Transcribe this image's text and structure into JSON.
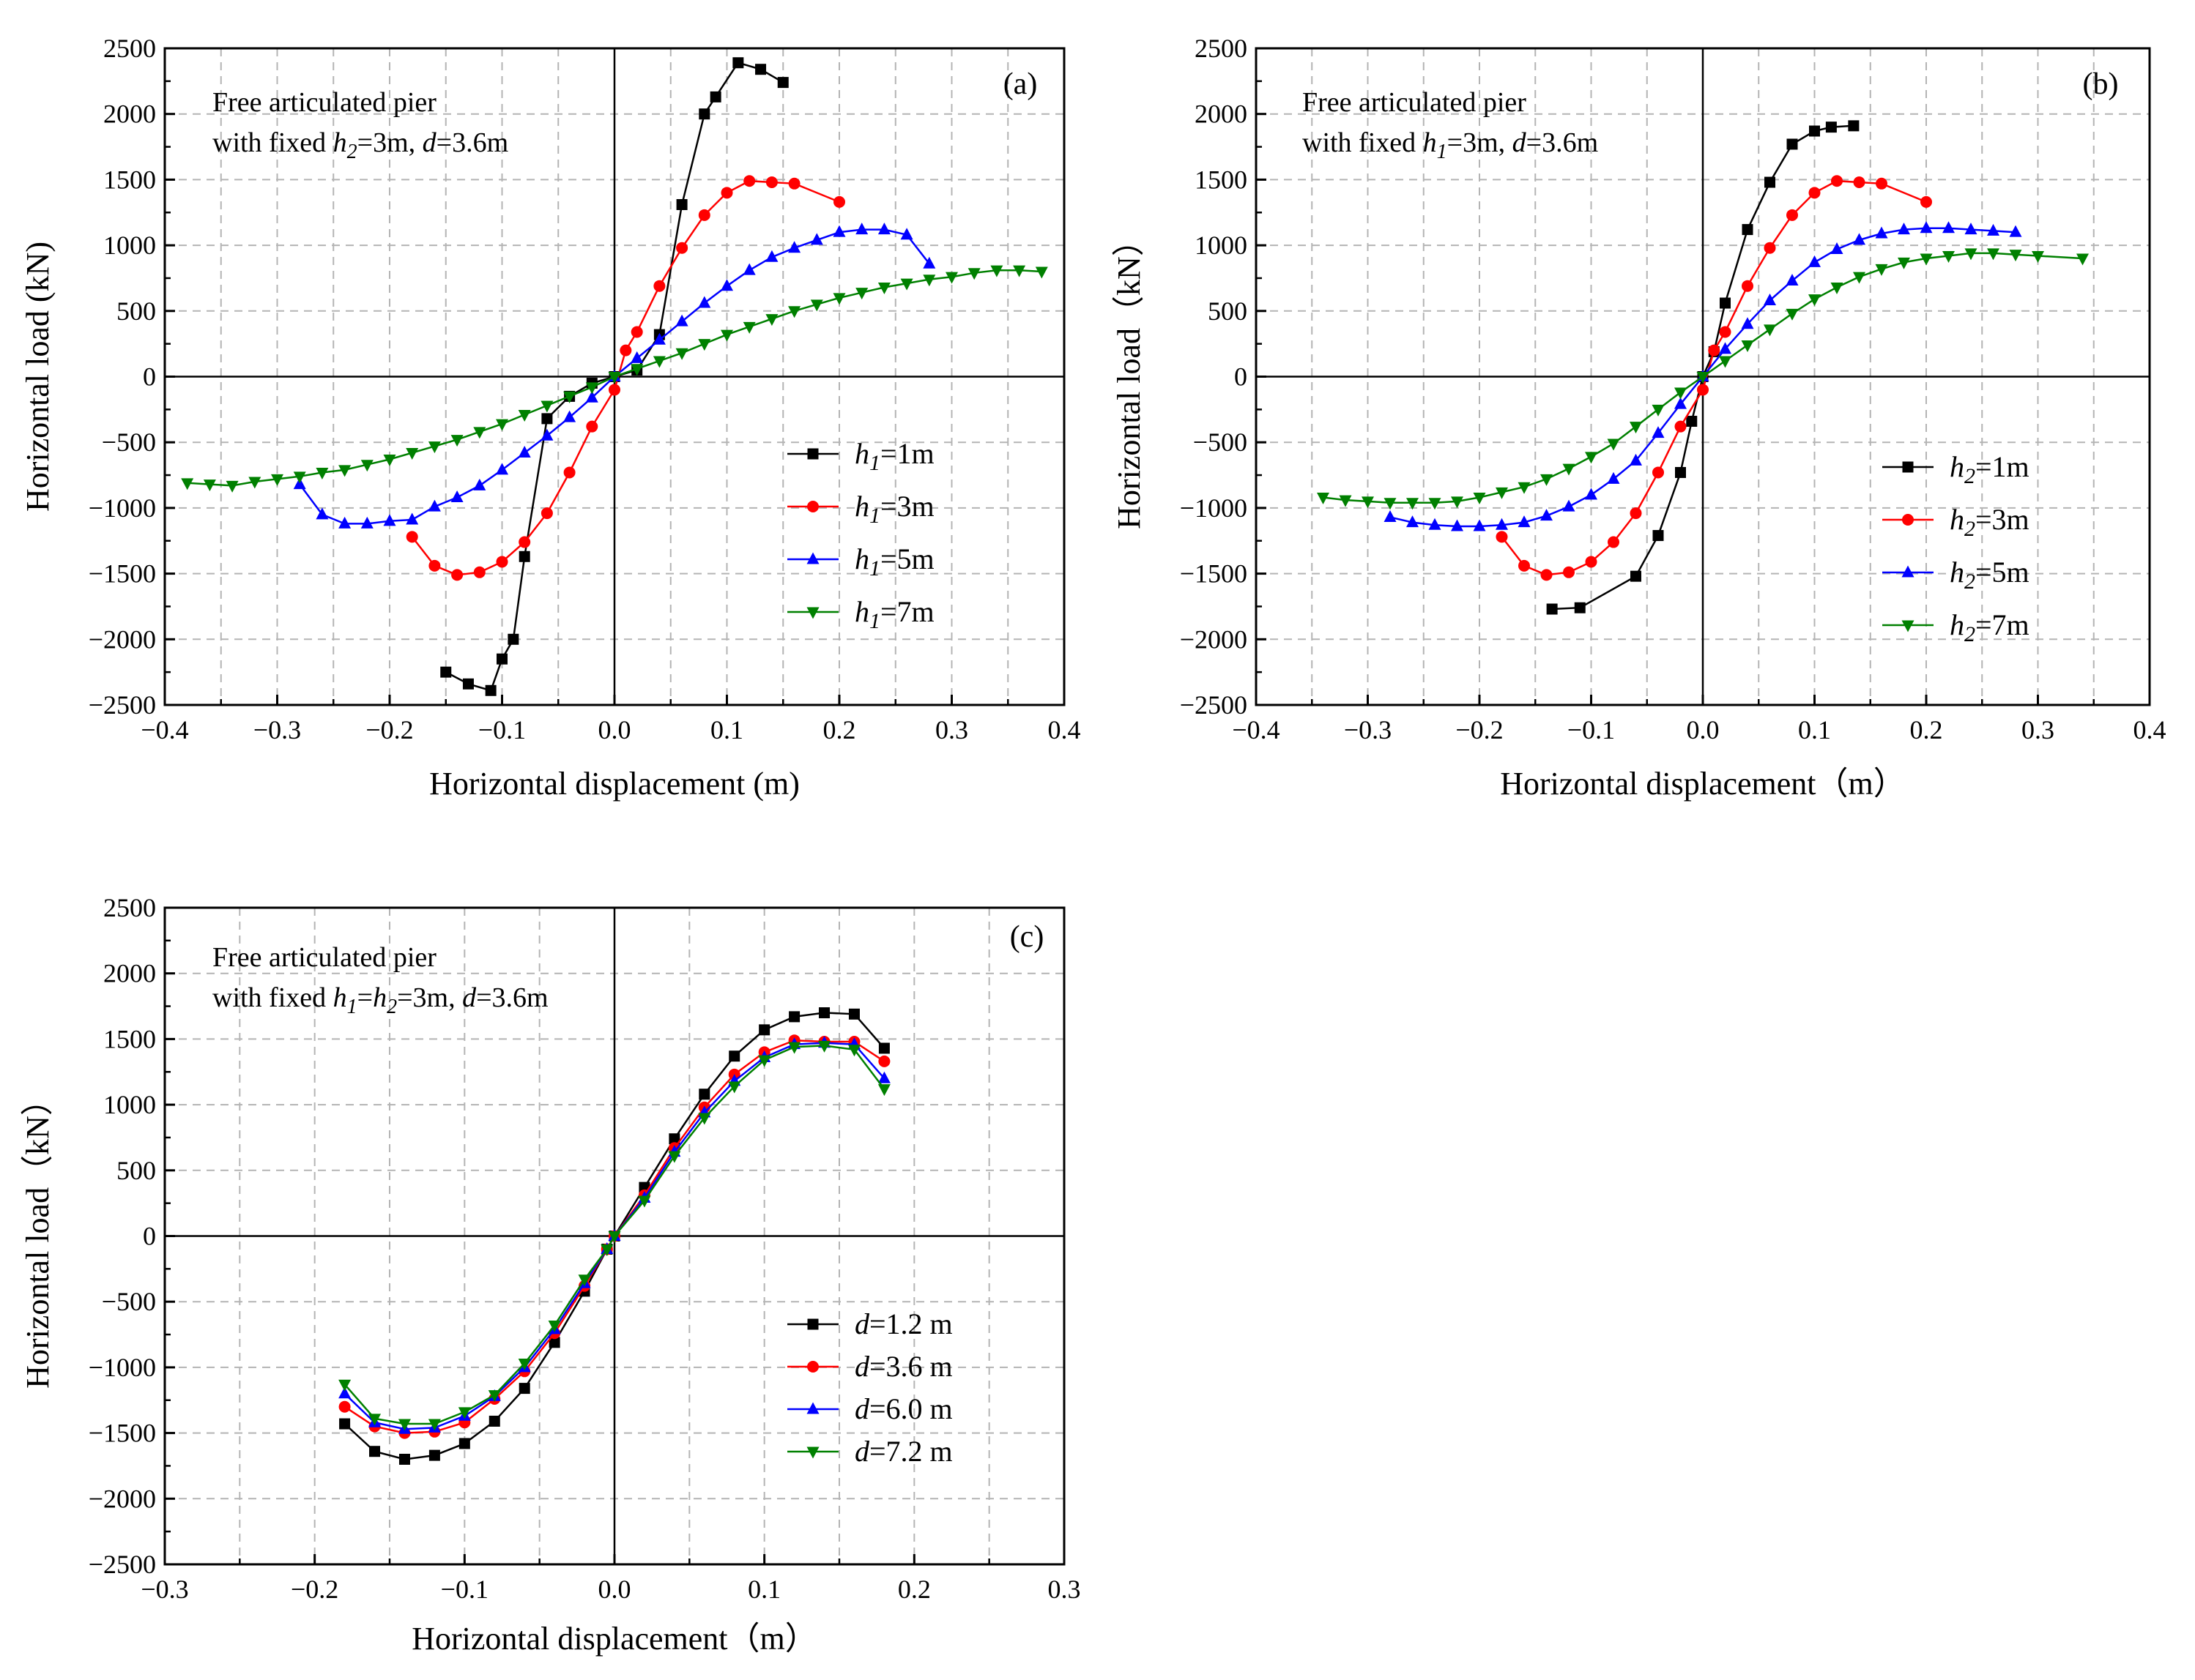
{
  "colors": {
    "black": "#000000",
    "red": "#ff0000",
    "blue": "#0000ff",
    "green": "#008000",
    "grid": "#b4b4b4"
  },
  "chart_data": [
    {
      "type": "line",
      "panel_label": "(a)",
      "annotation": {
        "line1": "Free articulated pier",
        "line2_prefix": "with fixed ",
        "var": "h",
        "sub": "2",
        "line2_mid": "=3m, ",
        "var2": "d",
        "line2_suffix": "=3.6m"
      },
      "xlabel": "Horizontal displacement (m)",
      "ylabel": "Horizontal load (kN)",
      "xlim": [
        -0.4,
        0.4
      ],
      "ylim": [
        -2500,
        2500
      ],
      "xticks": [
        -0.4,
        -0.3,
        -0.2,
        -0.1,
        0.0,
        0.1,
        0.2,
        0.3,
        0.4
      ],
      "xtick_labels": [
        "−0.4",
        "−0.3",
        "−0.2",
        "−0.1",
        "0.0",
        "0.1",
        "0.2",
        "0.3",
        "0.4"
      ],
      "yticks": [
        -2500,
        -2000,
        -1500,
        -1000,
        -500,
        0,
        500,
        1000,
        1500,
        2000,
        2500
      ],
      "ytick_labels": [
        "−2500",
        "−2000",
        "−1500",
        "−1000",
        "−500",
        "0",
        "500",
        "1000",
        "1500",
        "2000",
        "2500"
      ],
      "legend_position": "right",
      "series": [
        {
          "var": "h",
          "sub": "1",
          "value": "=1m",
          "color": "#000000",
          "marker": "square",
          "x": [
            -0.15,
            -0.13,
            -0.11,
            -0.1,
            -0.09,
            -0.08,
            -0.06,
            -0.04,
            -0.02,
            0,
            0.02,
            0.04,
            0.06,
            0.08,
            0.09,
            0.11,
            0.13,
            0.15
          ],
          "y": [
            -2250,
            -2340,
            -2390,
            -2150,
            -2000,
            -1370,
            -320,
            -150,
            -50,
            0,
            50,
            320,
            1310,
            2000,
            2130,
            2390,
            2340,
            2240
          ]
        },
        {
          "var": "h",
          "sub": "1",
          "value": "=3m",
          "color": "#ff0000",
          "marker": "circle",
          "x": [
            -0.18,
            -0.16,
            -0.14,
            -0.12,
            -0.1,
            -0.08,
            -0.06,
            -0.04,
            -0.02,
            0,
            0.01,
            0.02,
            0.04,
            0.06,
            0.08,
            0.1,
            0.12,
            0.14,
            0.16,
            0.2
          ],
          "y": [
            -1220,
            -1440,
            -1510,
            -1490,
            -1410,
            -1260,
            -1040,
            -730,
            -380,
            -100,
            200,
            340,
            690,
            980,
            1230,
            1400,
            1490,
            1480,
            1470,
            1330
          ]
        },
        {
          "var": "h",
          "sub": "1",
          "value": "=5m",
          "color": "#0000ff",
          "marker": "triangle-up",
          "x": [
            -0.28,
            -0.26,
            -0.24,
            -0.22,
            -0.2,
            -0.18,
            -0.16,
            -0.14,
            -0.12,
            -0.1,
            -0.08,
            -0.06,
            -0.04,
            -0.02,
            0,
            0.02,
            0.04,
            0.06,
            0.08,
            0.1,
            0.12,
            0.14,
            0.16,
            0.18,
            0.2,
            0.22,
            0.24,
            0.26,
            0.28
          ],
          "y": [
            -820,
            -1050,
            -1120,
            -1120,
            -1100,
            -1090,
            -990,
            -920,
            -830,
            -710,
            -580,
            -450,
            -310,
            -160,
            0,
            140,
            280,
            420,
            560,
            690,
            810,
            910,
            980,
            1040,
            1100,
            1120,
            1120,
            1080,
            860
          ]
        },
        {
          "var": "h",
          "sub": "1",
          "value": "=7m",
          "color": "#008000",
          "marker": "triangle-down",
          "x": [
            -0.38,
            -0.36,
            -0.34,
            -0.32,
            -0.3,
            -0.28,
            -0.26,
            -0.24,
            -0.22,
            -0.2,
            -0.18,
            -0.16,
            -0.14,
            -0.12,
            -0.1,
            -0.08,
            -0.06,
            -0.04,
            -0.02,
            0,
            0.02,
            0.04,
            0.06,
            0.08,
            0.1,
            0.12,
            0.14,
            0.16,
            0.18,
            0.2,
            0.22,
            0.24,
            0.26,
            0.28,
            0.3,
            0.32,
            0.34,
            0.36,
            0.38
          ],
          "y": [
            -810,
            -820,
            -830,
            -800,
            -780,
            -760,
            -730,
            -710,
            -670,
            -630,
            -580,
            -530,
            -480,
            -420,
            -360,
            -290,
            -220,
            -150,
            -80,
            0,
            60,
            120,
            180,
            250,
            320,
            380,
            440,
            500,
            550,
            600,
            640,
            680,
            710,
            740,
            760,
            790,
            810,
            810,
            800
          ]
        }
      ]
    },
    {
      "type": "line",
      "panel_label": "(b)",
      "annotation": {
        "line1": "Free articulated pier",
        "line2_prefix": "with fixed ",
        "var": "h",
        "sub": "1",
        "line2_mid": "=3m, ",
        "var2": "d",
        "line2_suffix": "=3.6m"
      },
      "xlabel": "Horizontal displacement（m）",
      "ylabel": "Horizontal load（kN）",
      "xlim": [
        -0.4,
        0.4
      ],
      "ylim": [
        -2500,
        2500
      ],
      "xticks": [
        -0.4,
        -0.3,
        -0.2,
        -0.1,
        0.0,
        0.1,
        0.2,
        0.3,
        0.4
      ],
      "xtick_labels": [
        "−0.4",
        "−0.3",
        "−0.2",
        "−0.1",
        "0.0",
        "0.1",
        "0.2",
        "0.3",
        "0.4"
      ],
      "yticks": [
        -2500,
        -2000,
        -1500,
        -1000,
        -500,
        0,
        500,
        1000,
        1500,
        2000,
        2500
      ],
      "ytick_labels": [
        "−2500",
        "−2000",
        "−1500",
        "−1000",
        "−500",
        "0",
        "500",
        "1000",
        "1500",
        "2000",
        "2500"
      ],
      "legend_position": "right",
      "series": [
        {
          "var": "h",
          "sub": "2",
          "value": "=1m",
          "color": "#000000",
          "marker": "square",
          "x": [
            -0.135,
            -0.11,
            -0.06,
            -0.04,
            -0.02,
            -0.01,
            0,
            0.01,
            0.02,
            0.04,
            0.06,
            0.08,
            0.1,
            0.115,
            0.135
          ],
          "y": [
            -1770,
            -1760,
            -1520,
            -1210,
            -730,
            -340,
            0,
            190,
            560,
            1120,
            1480,
            1770,
            1870,
            1900,
            1910
          ]
        },
        {
          "var": "h",
          "sub": "2",
          "value": "=3m",
          "color": "#ff0000",
          "marker": "circle",
          "x": [
            -0.18,
            -0.16,
            -0.14,
            -0.12,
            -0.1,
            -0.08,
            -0.06,
            -0.04,
            -0.02,
            0,
            0.01,
            0.02,
            0.04,
            0.06,
            0.08,
            0.1,
            0.12,
            0.14,
            0.16,
            0.2
          ],
          "y": [
            -1220,
            -1440,
            -1510,
            -1490,
            -1410,
            -1260,
            -1040,
            -730,
            -380,
            -100,
            200,
            340,
            690,
            980,
            1230,
            1400,
            1490,
            1480,
            1470,
            1330
          ]
        },
        {
          "var": "h",
          "sub": "2",
          "value": "=5m",
          "color": "#0000ff",
          "marker": "triangle-up",
          "x": [
            -0.28,
            -0.26,
            -0.24,
            -0.22,
            -0.2,
            -0.18,
            -0.16,
            -0.14,
            -0.12,
            -0.1,
            -0.08,
            -0.06,
            -0.04,
            -0.02,
            0,
            0.02,
            0.04,
            0.06,
            0.08,
            0.1,
            0.12,
            0.14,
            0.16,
            0.18,
            0.2,
            0.22,
            0.24,
            0.26,
            0.28
          ],
          "y": [
            -1070,
            -1110,
            -1130,
            -1140,
            -1140,
            -1130,
            -1110,
            -1060,
            -990,
            -900,
            -780,
            -640,
            -430,
            -210,
            0,
            210,
            400,
            580,
            730,
            870,
            970,
            1040,
            1090,
            1120,
            1130,
            1130,
            1120,
            1110,
            1100
          ]
        },
        {
          "var": "h",
          "sub": "2",
          "value": "=7m",
          "color": "#008000",
          "marker": "triangle-down",
          "x": [
            -0.34,
            -0.32,
            -0.3,
            -0.28,
            -0.26,
            -0.24,
            -0.22,
            -0.2,
            -0.18,
            -0.16,
            -0.14,
            -0.12,
            -0.1,
            -0.08,
            -0.06,
            -0.04,
            -0.02,
            0,
            0.02,
            0.04,
            0.06,
            0.08,
            0.1,
            0.12,
            0.14,
            0.16,
            0.18,
            0.2,
            0.22,
            0.24,
            0.26,
            0.28,
            0.3,
            0.34
          ],
          "y": [
            -920,
            -940,
            -950,
            -960,
            -960,
            -960,
            -950,
            -920,
            -880,
            -840,
            -780,
            -700,
            -610,
            -510,
            -380,
            -250,
            -120,
            0,
            120,
            240,
            360,
            480,
            590,
            680,
            760,
            820,
            870,
            900,
            920,
            940,
            940,
            930,
            920,
            900
          ]
        }
      ]
    },
    {
      "type": "line",
      "panel_label": "(c)",
      "annotation": {
        "line1": "Free articulated pier",
        "line2_prefix": "with fixed ",
        "var": "h",
        "sub": "1",
        "line2_mid": "=h",
        "sub2": "2",
        "line2_mid2": "=3m, ",
        "var2": "d",
        "line2_suffix": "=3.6m"
      },
      "xlabel": "Horizontal displacement（m）",
      "ylabel": "Horizontal load（kN）",
      "xlim": [
        -0.3,
        0.3
      ],
      "ylim": [
        -2500,
        2500
      ],
      "xticks": [
        -0.3,
        -0.2,
        -0.1,
        0.0,
        0.1,
        0.2,
        0.3
      ],
      "xtick_labels": [
        "−0.3",
        "−0.2",
        "−0.1",
        "0.0",
        "0.1",
        "0.2",
        "0.3"
      ],
      "yticks": [
        -2500,
        -2000,
        -1500,
        -1000,
        -500,
        0,
        500,
        1000,
        1500,
        2000,
        2500
      ],
      "ytick_labels": [
        "−2500",
        "−2000",
        "−1500",
        "−1000",
        "−500",
        "0",
        "500",
        "1000",
        "1500",
        "2000",
        "2500"
      ],
      "legend_position": "right",
      "series": [
        {
          "var": "d",
          "sub": "",
          "value": "=1.2 m",
          "color": "#000000",
          "marker": "square",
          "x": [
            -0.18,
            -0.16,
            -0.14,
            -0.12,
            -0.1,
            -0.08,
            -0.06,
            -0.04,
            -0.02,
            -0.005,
            0,
            0.02,
            0.04,
            0.06,
            0.08,
            0.1,
            0.12,
            0.14,
            0.16,
            0.18
          ],
          "y": [
            -1430,
            -1640,
            -1700,
            -1670,
            -1580,
            -1410,
            -1160,
            -810,
            -420,
            -100,
            0,
            370,
            740,
            1080,
            1370,
            1570,
            1670,
            1700,
            1690,
            1430
          ]
        },
        {
          "var": "d",
          "sub": "",
          "value": "=3.6 m",
          "color": "#ff0000",
          "marker": "circle",
          "x": [
            -0.18,
            -0.16,
            -0.14,
            -0.12,
            -0.1,
            -0.08,
            -0.06,
            -0.04,
            -0.02,
            -0.005,
            0,
            0.02,
            0.04,
            0.06,
            0.08,
            0.1,
            0.12,
            0.14,
            0.16,
            0.18
          ],
          "y": [
            -1300,
            -1450,
            -1500,
            -1490,
            -1420,
            -1240,
            -1030,
            -740,
            -380,
            -100,
            0,
            310,
            670,
            980,
            1230,
            1400,
            1490,
            1480,
            1480,
            1330
          ]
        },
        {
          "var": "d",
          "sub": "",
          "value": "=6.0 m",
          "color": "#0000ff",
          "marker": "triangle-up",
          "x": [
            -0.18,
            -0.16,
            -0.14,
            -0.12,
            -0.1,
            -0.08,
            -0.06,
            -0.04,
            -0.02,
            -0.005,
            0,
            0.02,
            0.04,
            0.06,
            0.08,
            0.1,
            0.12,
            0.14,
            0.16,
            0.18
          ],
          "y": [
            -1200,
            -1420,
            -1470,
            -1460,
            -1370,
            -1220,
            -1000,
            -710,
            -360,
            -100,
            0,
            290,
            640,
            940,
            1180,
            1360,
            1460,
            1470,
            1460,
            1200
          ]
        },
        {
          "var": "d",
          "sub": "",
          "value": "=7.2 m",
          "color": "#008000",
          "marker": "triangle-down",
          "x": [
            -0.18,
            -0.16,
            -0.14,
            -0.12,
            -0.1,
            -0.08,
            -0.06,
            -0.04,
            -0.02,
            -0.005,
            0,
            0.02,
            0.04,
            0.06,
            0.08,
            0.1,
            0.12,
            0.14,
            0.16,
            0.18
          ],
          "y": [
            -1130,
            -1390,
            -1430,
            -1430,
            -1340,
            -1210,
            -970,
            -680,
            -330,
            -100,
            0,
            270,
            610,
            900,
            1140,
            1340,
            1440,
            1450,
            1420,
            1120
          ]
        }
      ]
    }
  ]
}
